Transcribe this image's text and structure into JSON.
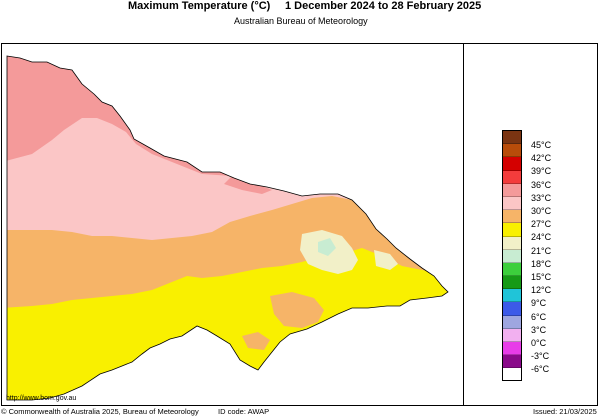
{
  "header": {
    "title": "Maximum Temperature (°C)",
    "dates": "1 December 2024 to 28 February 2025",
    "subtitle": "Australian Bureau of Meteorology"
  },
  "map": {
    "region": "Victoria",
    "colors": {
      "band_33_36": "#f49a9a",
      "band_30_33": "#fbc6c6",
      "band_27_30": "#f6b468",
      "band_24_27": "#f9f000",
      "band_21_24": "#f2f0c8",
      "band_18_21": "#c8ecd2"
    }
  },
  "legend": {
    "items": [
      {
        "label": "45°C",
        "color": "#7a3412"
      },
      {
        "label": "42°C",
        "color": "#b84c0a"
      },
      {
        "label": "39°C",
        "color": "#d40000"
      },
      {
        "label": "36°C",
        "color": "#f33c3c"
      },
      {
        "label": "33°C",
        "color": "#f49a9a"
      },
      {
        "label": "30°C",
        "color": "#fbc6c6"
      },
      {
        "label": "27°C",
        "color": "#f6b468"
      },
      {
        "label": "24°C",
        "color": "#f9f000"
      },
      {
        "label": "21°C",
        "color": "#f2f0c8"
      },
      {
        "label": "18°C",
        "color": "#c8ecd2"
      },
      {
        "label": "15°C",
        "color": "#3ccf3c"
      },
      {
        "label": "12°C",
        "color": "#169a16"
      },
      {
        "label": "9°C",
        "color": "#20c4d8"
      },
      {
        "label": "6°C",
        "color": "#3c5ae8"
      },
      {
        "label": "3°C",
        "color": "#9ea6e0"
      },
      {
        "label": "0°C",
        "color": "#f2b0f0"
      },
      {
        "label": "-3°C",
        "color": "#e83ce8"
      },
      {
        "label": "-6°C",
        "color": "#8a0a8a"
      }
    ]
  },
  "footer": {
    "url": "http://www.bom.gov.au",
    "copyright": "© Commonwealth of Australia 2025, Bureau of Meteorology",
    "id_code": "ID code: AWAP",
    "issued": "Issued: 21/03/2025"
  }
}
